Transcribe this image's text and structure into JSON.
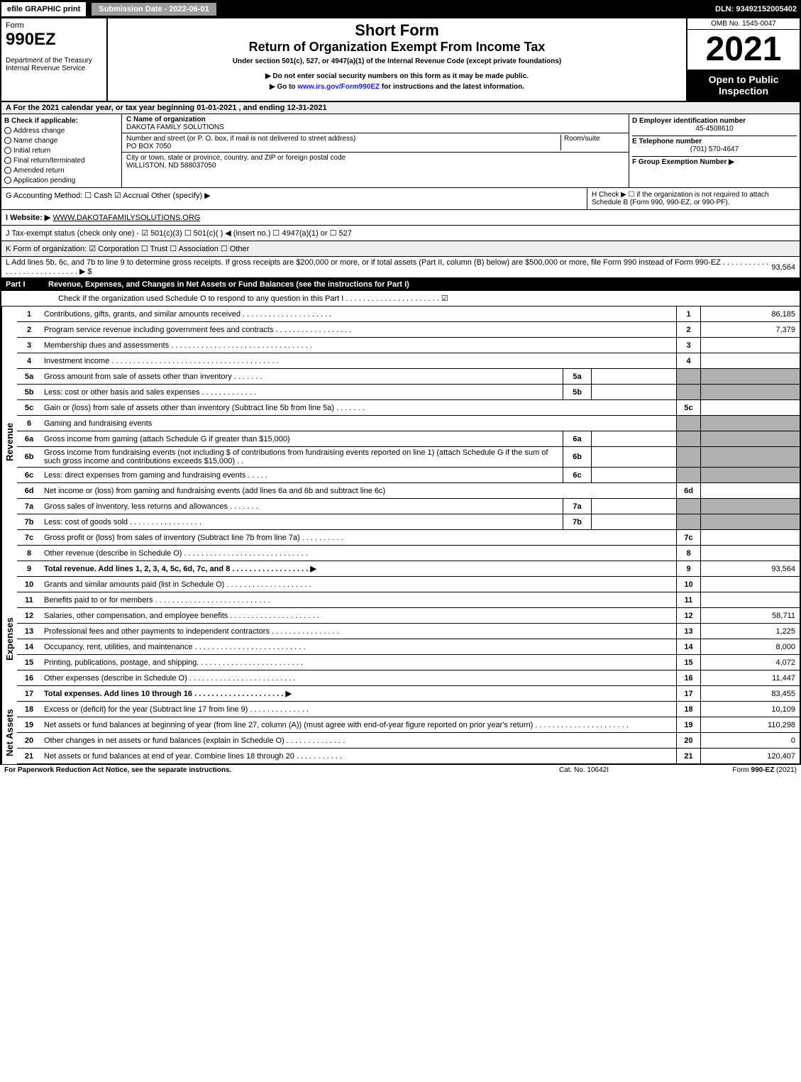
{
  "top": {
    "efile": "efile GRAPHIC print",
    "submission": "Submission Date - 2022-06-01",
    "dln": "DLN: 93492152005402"
  },
  "header": {
    "form": "Form",
    "formnum": "990EZ",
    "dept": "Department of the Treasury",
    "irs": "Internal Revenue Service",
    "shortform": "Short Form",
    "title": "Return of Organization Exempt From Income Tax",
    "subtitle": "Under section 501(c), 527, or 4947(a)(1) of the Internal Revenue Code (except private foundations)",
    "note1": "▶ Do not enter social security numbers on this form as it may be made public.",
    "note2": "▶ Go to www.irs.gov/Form990EZ for instructions and the latest information.",
    "omb": "OMB No. 1545-0047",
    "year": "2021",
    "open": "Open to Public Inspection"
  },
  "A": "A  For the 2021 calendar year, or tax year beginning 01-01-2021 , and ending 12-31-2021",
  "B": {
    "label": "B  Check if applicable:",
    "items": [
      "Address change",
      "Name change",
      "Initial return",
      "Final return/terminated",
      "Amended return",
      "Application pending"
    ]
  },
  "C": {
    "nameLabel": "C Name of organization",
    "name": "DAKOTA FAMILY SOLUTIONS",
    "streetLabel": "Number and street (or P. O. box, if mail is not delivered to street address)",
    "street": "PO BOX 7050",
    "room": "Room/suite",
    "cityLabel": "City or town, state or province, country, and ZIP or foreign postal code",
    "city": "WILLISTON, ND  588037050"
  },
  "D": {
    "label": "D Employer identification number",
    "val": "45-4508610"
  },
  "E": {
    "label": "E Telephone number",
    "val": "(701) 570-4647"
  },
  "F": {
    "label": "F Group Exemption Number  ▶"
  },
  "G": "G Accounting Method:   ☐ Cash   ☑ Accrual   Other (specify) ▶",
  "H": "H   Check ▶  ☐  if the organization is not required to attach Schedule B (Form 990, 990-EZ, or 990-PF).",
  "I": {
    "label": "I Website: ▶",
    "val": "WWW.DAKOTAFAMILYSOLUTIONS.ORG"
  },
  "J": "J Tax-exempt status (check only one) -  ☑ 501(c)(3)  ☐  501(c)(  ) ◀ (insert no.)  ☐  4947(a)(1) or  ☐  527",
  "K": "K Form of organization:   ☑ Corporation   ☐ Trust   ☐ Association   ☐ Other",
  "L": {
    "text": "L Add lines 5b, 6c, and 7b to line 9 to determine gross receipts. If gross receipts are $200,000 or more, or if total assets (Part II, column (B) below) are $500,000 or more, file Form 990 instead of Form 990-EZ . . . . . . . . . . . . . . . . . . . . . . . . . . . . ▶ $",
    "val": "93,564"
  },
  "part1": {
    "label": "Part I",
    "title": "Revenue, Expenses, and Changes in Net Assets or Fund Balances (see the instructions for Part I)",
    "schedO": "Check if the organization used Schedule O to respond to any question in this Part I . . . . . . . . . . . . . . . . . . . . . .  ☑"
  },
  "lines": {
    "1": {
      "desc": "Contributions, gifts, grants, and similar amounts received . . . . . . . . . . . . . . . . . . . . .",
      "val": "86,185"
    },
    "2": {
      "desc": "Program service revenue including government fees and contracts . . . . . . . . . . . . . . . . . .",
      "val": "7,379"
    },
    "3": {
      "desc": "Membership dues and assessments . . . . . . . . . . . . . . . . . . . . . . . . . . . . . . . . .",
      "val": ""
    },
    "4": {
      "desc": "Investment income . . . . . . . . . . . . . . . . . . . . . . . . . . . . . . . . . . . . . . .",
      "val": ""
    },
    "5a": {
      "desc": "Gross amount from sale of assets other than inventory . . . . . . .",
      "sub": "5a"
    },
    "5b": {
      "desc": "Less: cost or other basis and sales expenses . . . . . . . . . . . . .",
      "sub": "5b"
    },
    "5c": {
      "desc": "Gain or (loss) from sale of assets other than inventory (Subtract line 5b from line 5a) . . . . . . .",
      "val": ""
    },
    "6": {
      "desc": "Gaming and fundraising events"
    },
    "6a": {
      "desc": "Gross income from gaming (attach Schedule G if greater than $15,000)",
      "sub": "6a"
    },
    "6b": {
      "desc": "Gross income from fundraising events (not including $                     of contributions from fundraising events reported on line 1) (attach Schedule G if the sum of such gross income and contributions exceeds $15,000) . .",
      "sub": "6b"
    },
    "6c": {
      "desc": "Less: direct expenses from gaming and fundraising events . . . . .",
      "sub": "6c"
    },
    "6d": {
      "desc": "Net income or (loss) from gaming and fundraising events (add lines 6a and 6b and subtract line 6c)",
      "val": ""
    },
    "7a": {
      "desc": "Gross sales of inventory, less returns and allowances . . . . . . .",
      "sub": "7a"
    },
    "7b": {
      "desc": "Less: cost of goods sold           . . . . . . . . . . . . . . . . .",
      "sub": "7b"
    },
    "7c": {
      "desc": "Gross profit or (loss) from sales of inventory (Subtract line 7b from line 7a) . . . . . . . . . .",
      "val": ""
    },
    "8": {
      "desc": "Other revenue (describe in Schedule O) . . . . . . . . . . . . . . . . . . . . . . . . . . . . .",
      "val": ""
    },
    "9": {
      "desc": "Total revenue. Add lines 1, 2, 3, 4, 5c, 6d, 7c, and 8  . . . . . . . . . . . . . . . . . .  ▶",
      "val": "93,564",
      "bold": true
    },
    "10": {
      "desc": "Grants and similar amounts paid (list in Schedule O) . . . . . . . . . . . . . . . . . . . .",
      "val": ""
    },
    "11": {
      "desc": "Benefits paid to or for members        . . . . . . . . . . . . . . . . . . . . . . . . . . .",
      "val": ""
    },
    "12": {
      "desc": "Salaries, other compensation, and employee benefits . . . . . . . . . . . . . . . . . . . . .",
      "val": "58,711"
    },
    "13": {
      "desc": "Professional fees and other payments to independent contractors . . . . . . . . . . . . . . . .",
      "val": "1,225"
    },
    "14": {
      "desc": "Occupancy, rent, utilities, and maintenance . . . . . . . . . . . . . . . . . . . . . . . . . .",
      "val": "8,000"
    },
    "15": {
      "desc": "Printing, publications, postage, and shipping. . . . . . . . . . . . . . . . . . . . . . . . .",
      "val": "4,072"
    },
    "16": {
      "desc": "Other expenses (describe in Schedule O)      . . . . . . . . . . . . . . . . . . . . . . . . .",
      "val": "11,447"
    },
    "17": {
      "desc": "Total expenses. Add lines 10 through 16      . . . . . . . . . . . . . . . . . . . . .  ▶",
      "val": "83,455",
      "bold": true
    },
    "18": {
      "desc": "Excess or (deficit) for the year (Subtract line 17 from line 9)       . . . . . . . . . . . . . .",
      "val": "10,109"
    },
    "19": {
      "desc": "Net assets or fund balances at beginning of year (from line 27, column (A)) (must agree with end-of-year figure reported on prior year's return) . . . . . . . . . . . . . . . . . . . . . .",
      "val": "110,298"
    },
    "20": {
      "desc": "Other changes in net assets or fund balances (explain in Schedule O) . . . . . . . . . . . . . .",
      "val": "0"
    },
    "21": {
      "desc": "Net assets or fund balances at end of year. Combine lines 18 through 20 . . . . . . . . . . .",
      "val": "120,407"
    }
  },
  "sidebars": {
    "revenue": "Revenue",
    "expenses": "Expenses",
    "netassets": "Net Assets"
  },
  "footer": {
    "left": "For Paperwork Reduction Act Notice, see the separate instructions.",
    "center": "Cat. No. 10642I",
    "right": "Form 990-EZ (2021)"
  }
}
